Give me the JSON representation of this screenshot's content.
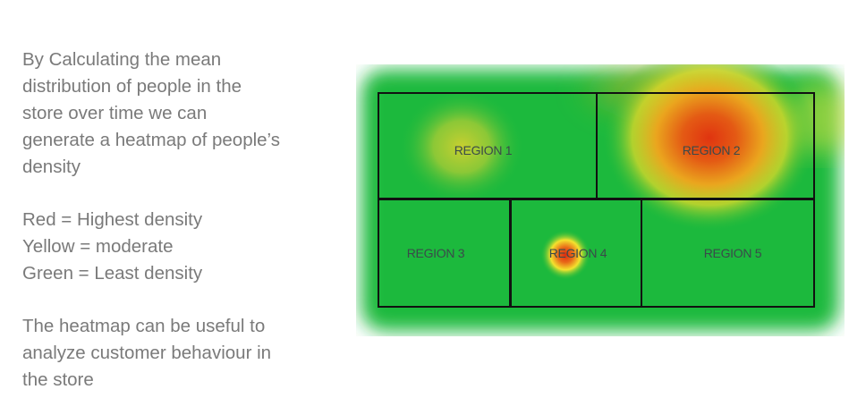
{
  "description": {
    "paragraph1": [
      "By Calculating the mean",
      "distribution of people in the",
      "store over time we can",
      "generate a heatmap of people’s",
      "density"
    ],
    "legend": [
      "Red = Highest density",
      "Yellow = moderate",
      "Green = Least density"
    ],
    "paragraph3": [
      "The heatmap can be useful to",
      "analyze customer behaviour in",
      "the store"
    ]
  },
  "heatmap": {
    "regions": [
      {
        "label": "REGION 1"
      },
      {
        "label": "REGION 2"
      },
      {
        "label": "REGION 3"
      },
      {
        "label": "REGION 4"
      },
      {
        "label": "REGION 5"
      }
    ],
    "colors": {
      "high": "#e02a10",
      "moderate": "#f2e830",
      "low": "#1cb93c",
      "text": "#7a7a7a"
    }
  }
}
